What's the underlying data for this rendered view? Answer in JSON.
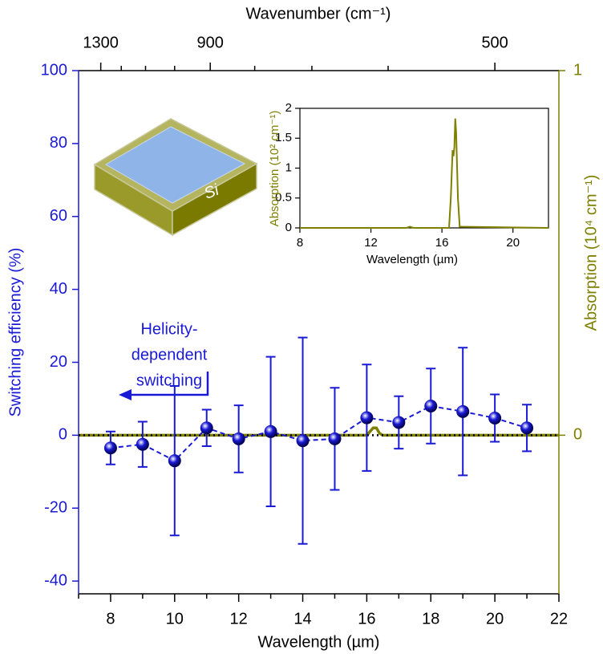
{
  "chart_data": [
    {
      "type": "errorbar",
      "x_label": "Wavelength (µm)",
      "x2_label": "Wavenumber (cm⁻¹)",
      "y_label": "Switching efficiency (%)",
      "y2_label": "Absorption (10⁴ cm⁻¹)",
      "xlim": [
        7,
        22
      ],
      "xticks": [
        8,
        10,
        12,
        14,
        16,
        18,
        20,
        22
      ],
      "xminorticks": [
        7,
        9,
        11,
        13,
        15,
        17,
        19,
        21
      ],
      "x2ticks": [
        1300,
        900,
        500
      ],
      "x2minorticks": [
        1200,
        1100,
        1000,
        800,
        700,
        600
      ],
      "ylim": [
        -43.5,
        100
      ],
      "yticks": [
        -40,
        -20,
        0,
        20,
        40,
        60,
        80,
        100
      ],
      "y2lim": [
        -0.435,
        1
      ],
      "y2ticks": [
        0,
        1
      ],
      "axis_color": "#1a1ad6",
      "axis2_color": "#7f7f00",
      "series": [
        {
          "color": "#1a1ad6",
          "marker": "sphere",
          "linestyle": "dashed",
          "x": [
            8,
            9,
            10,
            11,
            12,
            13,
            14,
            15,
            16,
            17,
            18,
            19,
            20,
            21
          ],
          "values": [
            -3.5,
            -2.5,
            -7,
            2,
            -1,
            1,
            -1.5,
            -1,
            4.8,
            3.5,
            8,
            6.5,
            4.7,
            2
          ],
          "errors": [
            4.5,
            6.2,
            20.5,
            5,
            9.2,
            20.5,
            28.3,
            14,
            14.6,
            7.2,
            10.3,
            17.5,
            6.5,
            6.4
          ]
        },
        {
          "color": "#7f7f00",
          "axis": "y2",
          "linestyle": "solid",
          "x": [
            7,
            16,
            16.1,
            16.2,
            16.3,
            16.4,
            16.5,
            22
          ],
          "values": [
            0,
            0,
            0.01,
            0.02,
            0.02,
            0.005,
            0,
            0
          ]
        }
      ],
      "zero_line": {
        "value": 0,
        "color": "#000000",
        "style": "dotted"
      },
      "annotation": {
        "lines": [
          "Helicity-",
          "dependent",
          "switching"
        ],
        "color": "#1a1ad6"
      },
      "sample_label": "Si"
    },
    {
      "type": "line",
      "x_label": "Wavelength (µm)",
      "y_label": "Absorption (10² cm⁻¹)",
      "xlim": [
        8,
        22
      ],
      "xticks": [
        8,
        12,
        16,
        20
      ],
      "ylim": [
        0,
        2
      ],
      "yticks": [
        0,
        0.5,
        1,
        1.5,
        2
      ],
      "color": "#7f7f00",
      "x": [
        8,
        14,
        14.2,
        14.4,
        16.4,
        16.5,
        16.6,
        16.65,
        16.7,
        16.75,
        16.8,
        16.9,
        17,
        22
      ],
      "values": [
        0,
        0,
        0.02,
        0,
        0,
        0.5,
        1.3,
        1.2,
        1.35,
        1.83,
        1.6,
        0.5,
        0.02,
        0
      ]
    }
  ]
}
